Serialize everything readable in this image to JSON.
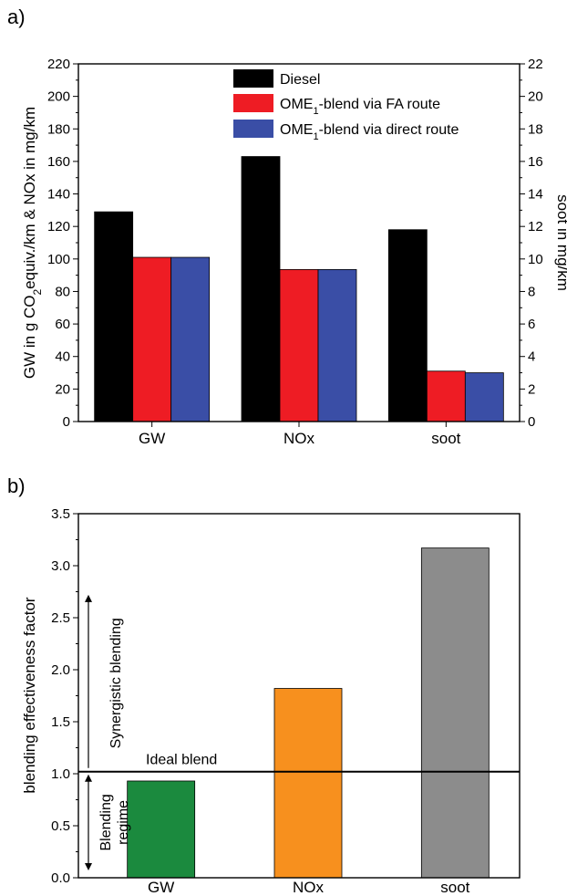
{
  "chart_data": [
    {
      "type": "bar",
      "panel_label": "a)",
      "categories": [
        "GW",
        "NOx",
        "soot"
      ],
      "series": [
        {
          "name": "Diesel",
          "color": "#000000",
          "values": [
            129,
            163,
            11.8
          ]
        },
        {
          "name": "OME1-blend via FA route",
          "name_main": "OME",
          "name_sub": "1",
          "name_rest": "-blend via FA route",
          "color": "#ee1c24",
          "values": [
            101,
            93.5,
            3.1
          ]
        },
        {
          "name": "OME1-blend via direct route",
          "name_main": "OME",
          "name_sub": "1",
          "name_rest": "-blend via direct route",
          "color": "#3a4ea6",
          "values": [
            101,
            93.5,
            3.0
          ]
        }
      ],
      "value_axis_per_category": [
        "left",
        "left",
        "right"
      ],
      "ylabel_left": {
        "prefix": "GW in g CO",
        "sub": "2",
        "suffix": "equiv./km  & NOx in mg/km"
      },
      "ylim_left": [
        0,
        220
      ],
      "yticks_left": [
        "0",
        "20",
        "40",
        "60",
        "80",
        "100",
        "120",
        "140",
        "160",
        "180",
        "200",
        "220"
      ],
      "ylabel_right": "soot in mg/km",
      "ylim_right": [
        0,
        22
      ],
      "yticks_right": [
        "0",
        "2",
        "4",
        "6",
        "8",
        "10",
        "12",
        "14",
        "16",
        "18",
        "20",
        "22"
      ],
      "legend_position": "top-right",
      "grid": false
    },
    {
      "type": "bar",
      "panel_label": "b)",
      "categories": [
        "GW",
        "NOx",
        "soot"
      ],
      "values": [
        0.93,
        1.82,
        3.17
      ],
      "colors": [
        "#1b8a3e",
        "#f7901e",
        "#8c8c8c"
      ],
      "ylabel": "blending effectiveness factor",
      "ylim": [
        0,
        3.5
      ],
      "yticks": [
        "0.0",
        "0.5",
        "1.0",
        "1.5",
        "2.0",
        "2.5",
        "3.0",
        "3.5"
      ],
      "reference_line": {
        "value": 1.02,
        "label": "Ideal blend"
      },
      "annotations": {
        "upper": "Synergistic blending",
        "lower_line1": "Blending",
        "lower_line2": "regime"
      },
      "grid": false
    }
  ]
}
